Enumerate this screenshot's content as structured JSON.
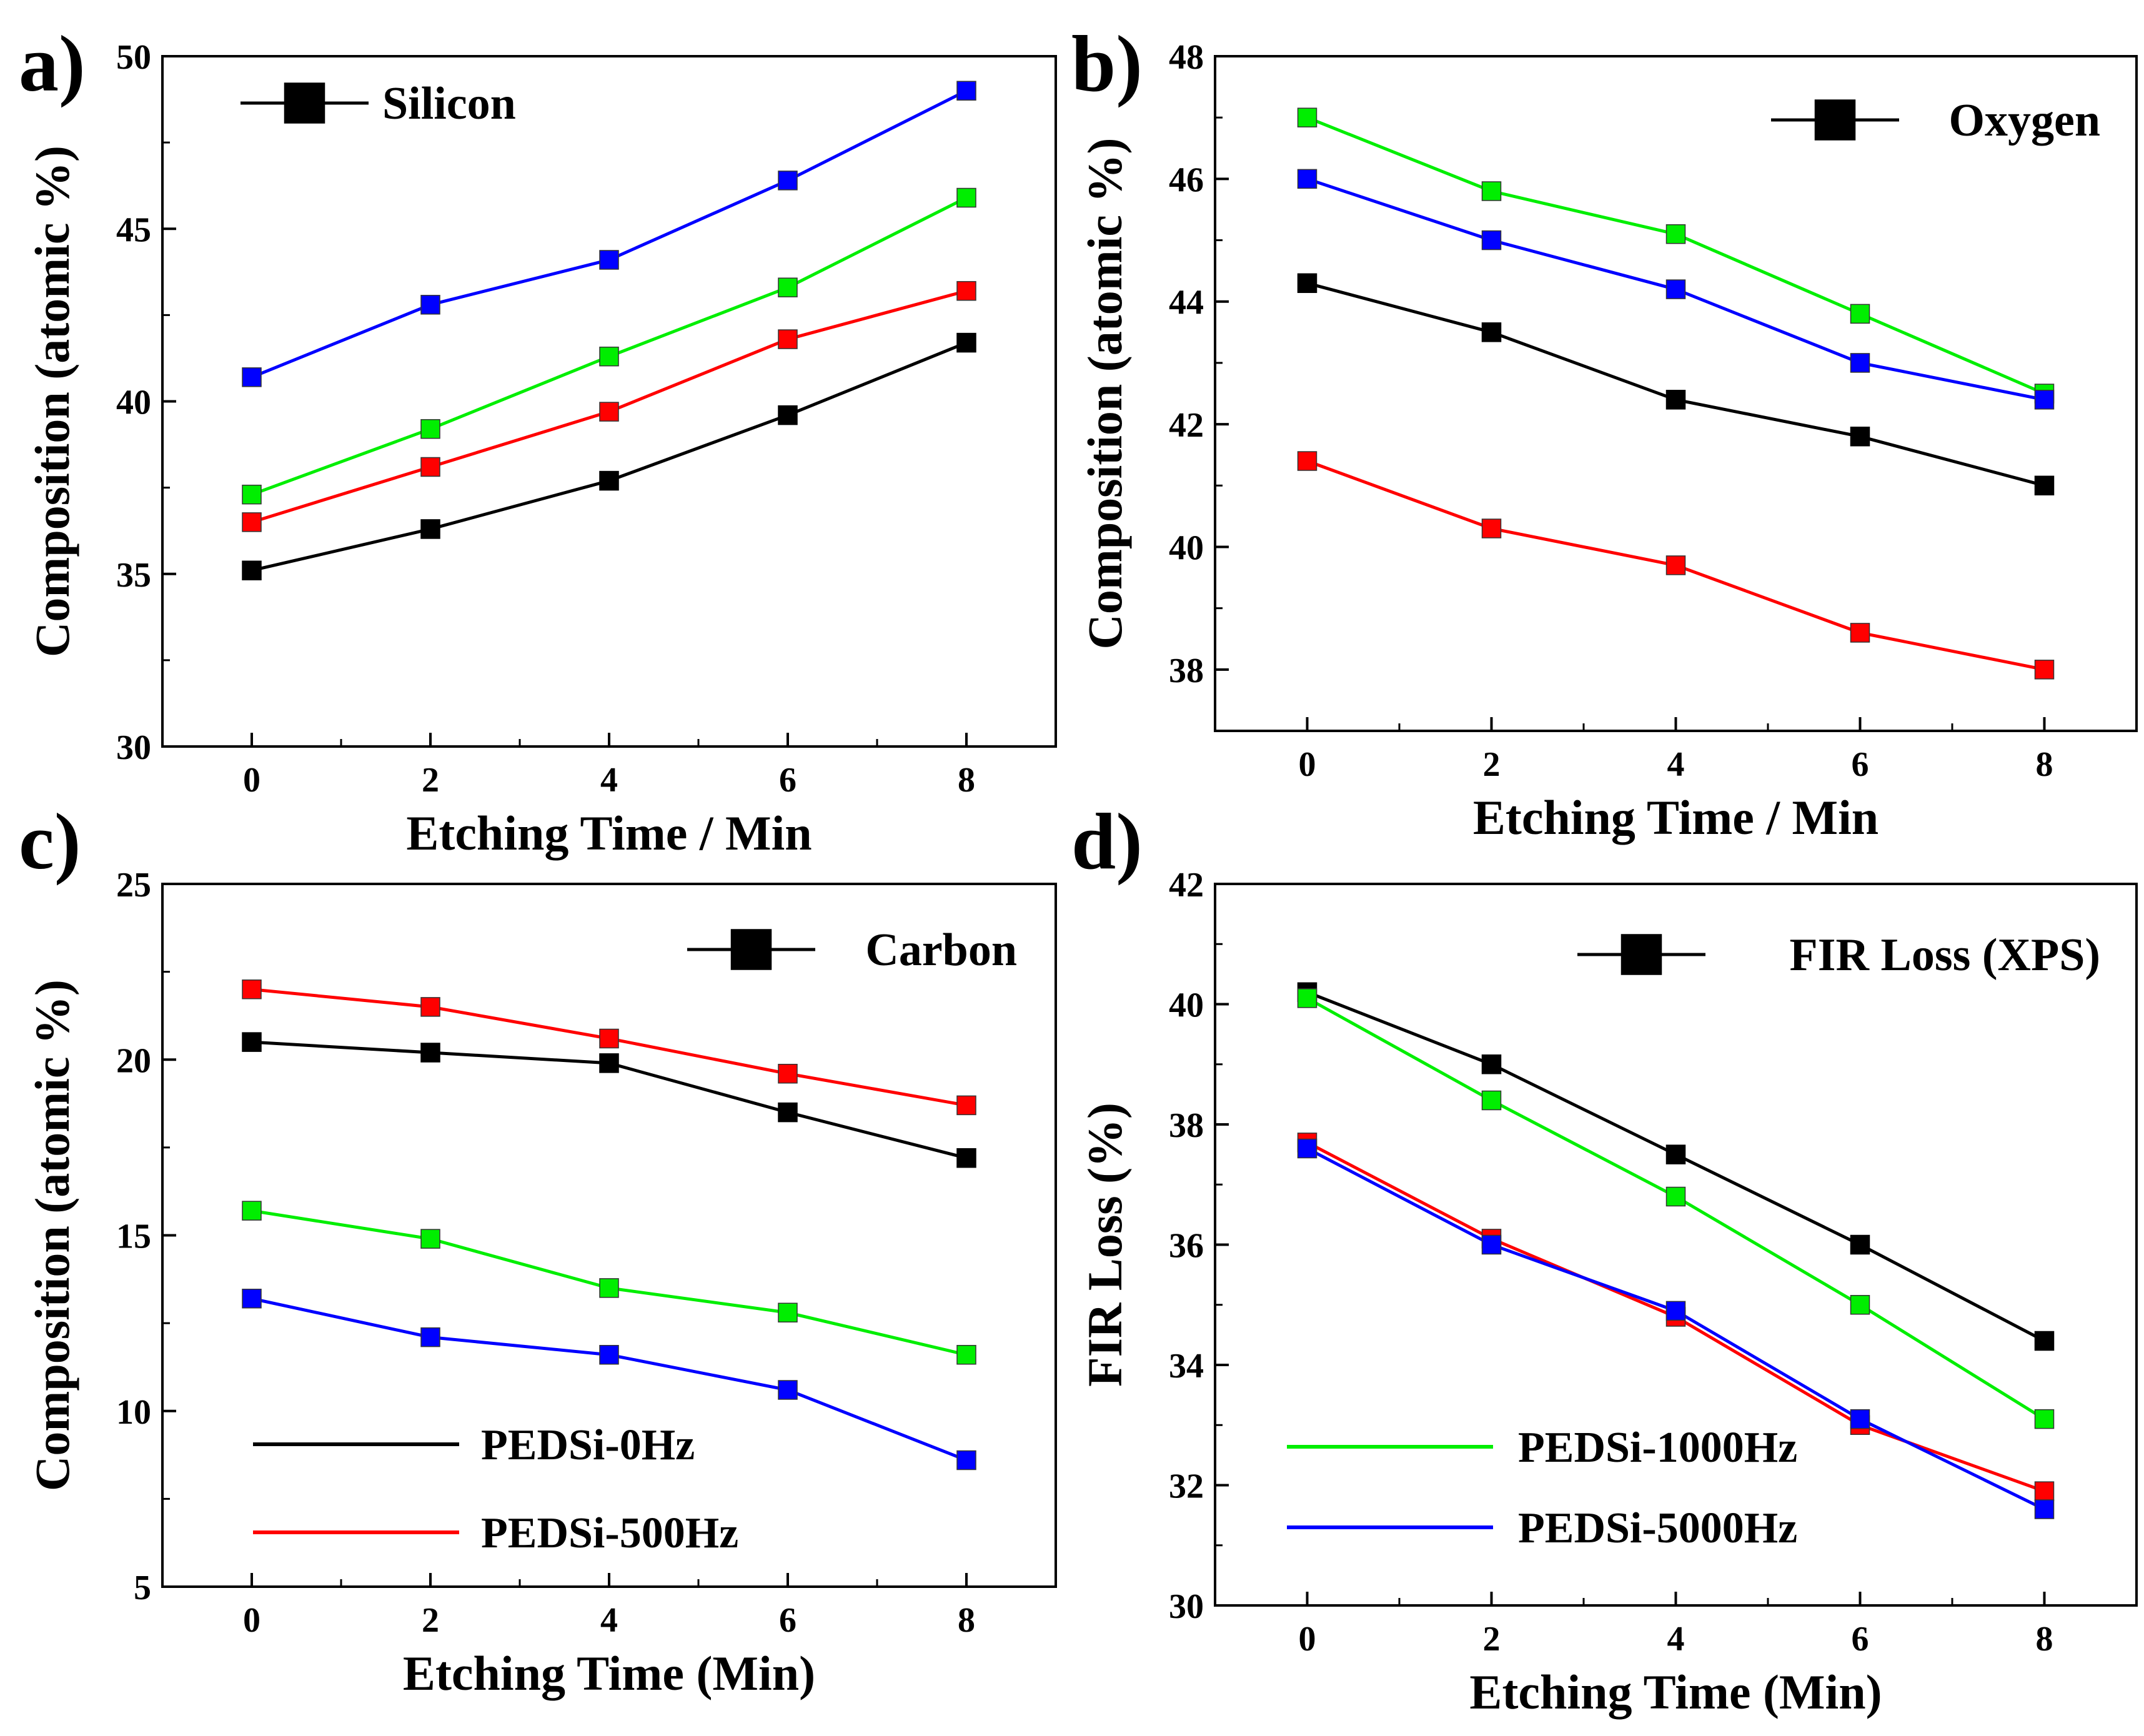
{
  "figure": {
    "x_ticks": [
      "0",
      "2",
      "4",
      "6",
      "8"
    ],
    "legend_series": [
      {
        "name": "PEDSi-0Hz",
        "color": "#000000",
        "panel": 2
      },
      {
        "name": "PEDSi-500Hz",
        "color": "#ff0000",
        "panel": 2
      },
      {
        "name": "PEDSi-1000Hz",
        "color": "#00ee00",
        "panel": 3
      },
      {
        "name": "PEDSi-5000Hz",
        "color": "#0000ff",
        "panel": 3
      }
    ]
  },
  "chart_data": [
    {
      "type": "line",
      "panel_label": "a)",
      "legend": "Silicon",
      "xlabel": "Etching Time / Min",
      "ylabel": "Composition (atomic %)",
      "x": [
        0,
        2,
        4,
        6,
        8
      ],
      "xlim": [
        -1,
        9
      ],
      "ylim": [
        30,
        50
      ],
      "y_ticks": [
        30,
        35,
        40,
        45,
        50
      ],
      "series": [
        {
          "name": "PEDSi-0Hz",
          "color": "#000000",
          "values": [
            35.1,
            36.3,
            37.7,
            39.6,
            41.7
          ]
        },
        {
          "name": "PEDSi-500Hz",
          "color": "#ff0000",
          "values": [
            36.5,
            38.1,
            39.7,
            41.8,
            43.2
          ]
        },
        {
          "name": "PEDSi-1000Hz",
          "color": "#00ee00",
          "values": [
            37.3,
            39.2,
            41.3,
            43.3,
            45.9
          ]
        },
        {
          "name": "PEDSi-5000Hz",
          "color": "#0000ff",
          "values": [
            40.7,
            42.8,
            44.1,
            46.4,
            49.0
          ]
        }
      ]
    },
    {
      "type": "line",
      "panel_label": "b)",
      "legend": "Oxygen",
      "xlabel": "Etching Time / Min",
      "ylabel": "Composition (atomic %)",
      "x": [
        0,
        2,
        4,
        6,
        8
      ],
      "xlim": [
        -1,
        9
      ],
      "ylim": [
        37,
        48
      ],
      "y_ticks": [
        38,
        40,
        42,
        44,
        46,
        48
      ],
      "series": [
        {
          "name": "PEDSi-0Hz",
          "color": "#000000",
          "values": [
            44.3,
            43.5,
            42.4,
            41.8,
            41.0
          ]
        },
        {
          "name": "PEDSi-500Hz",
          "color": "#ff0000",
          "values": [
            41.4,
            40.3,
            39.7,
            38.6,
            38.0
          ]
        },
        {
          "name": "PEDSi-1000Hz",
          "color": "#00ee00",
          "values": [
            47.0,
            45.8,
            45.1,
            43.8,
            42.5
          ]
        },
        {
          "name": "PEDSi-5000Hz",
          "color": "#0000ff",
          "values": [
            46.0,
            45.0,
            44.2,
            43.0,
            42.4
          ]
        }
      ]
    },
    {
      "type": "line",
      "panel_label": "c)",
      "legend": "Carbon",
      "xlabel": "Etching Time (Min)",
      "ylabel": "Composition (atomic %)",
      "x": [
        0,
        2,
        4,
        6,
        8
      ],
      "xlim": [
        -1,
        9
      ],
      "ylim": [
        5,
        25
      ],
      "y_ticks": [
        5,
        10,
        15,
        20,
        25
      ],
      "series": [
        {
          "name": "PEDSi-0Hz",
          "color": "#000000",
          "values": [
            20.5,
            20.2,
            19.9,
            18.5,
            17.2
          ]
        },
        {
          "name": "PEDSi-500Hz",
          "color": "#ff0000",
          "values": [
            22.0,
            21.5,
            20.6,
            19.6,
            18.7
          ]
        },
        {
          "name": "PEDSi-1000Hz",
          "color": "#00ee00",
          "values": [
            15.7,
            14.9,
            13.5,
            12.8,
            11.6
          ]
        },
        {
          "name": "PEDSi-5000Hz",
          "color": "#0000ff",
          "values": [
            13.2,
            12.1,
            11.6,
            10.6,
            8.6
          ]
        }
      ]
    },
    {
      "type": "line",
      "panel_label": "d)",
      "legend": "FIR Loss (XPS)",
      "xlabel": "Etching Time (Min)",
      "ylabel": "FIR Loss (%)",
      "x": [
        0,
        2,
        4,
        6,
        8
      ],
      "xlim": [
        -1,
        9
      ],
      "ylim": [
        30,
        42
      ],
      "y_ticks": [
        30,
        32,
        34,
        36,
        38,
        40,
        42
      ],
      "series": [
        {
          "name": "PEDSi-0Hz",
          "color": "#000000",
          "values": [
            40.2,
            39.0,
            37.5,
            36.0,
            34.4
          ]
        },
        {
          "name": "PEDSi-500Hz",
          "color": "#ff0000",
          "values": [
            37.7,
            36.1,
            34.8,
            33.0,
            31.9
          ]
        },
        {
          "name": "PEDSi-1000Hz",
          "color": "#00ee00",
          "values": [
            40.1,
            38.4,
            36.8,
            35.0,
            33.1
          ]
        },
        {
          "name": "PEDSi-5000Hz",
          "color": "#0000ff",
          "values": [
            37.6,
            36.0,
            34.9,
            33.1,
            31.6
          ]
        }
      ]
    }
  ]
}
